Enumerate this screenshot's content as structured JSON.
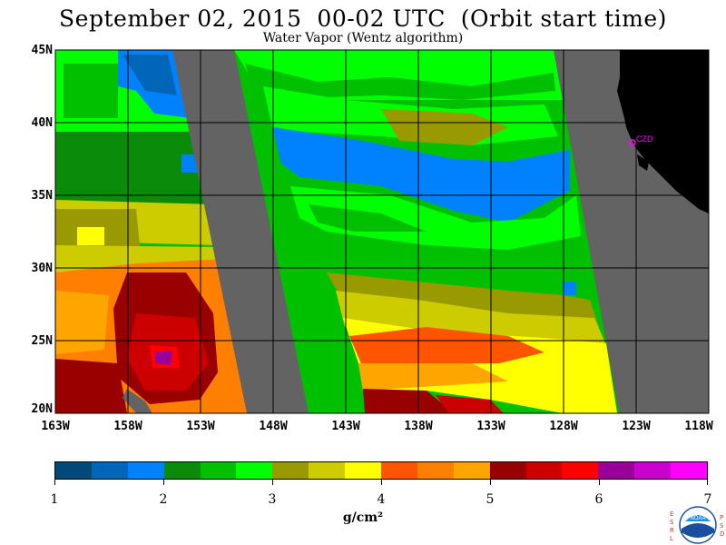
{
  "header": {
    "title": "September 02, 2015  00-02 UTC  (Orbit start time)",
    "subtitle": "Water Vapor (Wentz algorithm)"
  },
  "map": {
    "latitude_labels": [
      "45N",
      "40N",
      "35N",
      "30N",
      "25N",
      "20N"
    ],
    "longitude_labels": [
      "163W",
      "158W",
      "153W",
      "148W",
      "143W",
      "138W",
      "133W",
      "128W",
      "123W",
      "118W"
    ],
    "station_label": "CZD",
    "colors": {
      "no_data": "#636363",
      "land": "#000000",
      "station": "#ff00ff",
      "grid": "#000000"
    }
  },
  "colorbar": {
    "colors": [
      "#004a7a",
      "#0066b8",
      "#0082ff",
      "#0a8c0a",
      "#00c000",
      "#00ff00",
      "#999900",
      "#cccc00",
      "#ffff00",
      "#ff5500",
      "#ff7f00",
      "#ffa500",
      "#990000",
      "#cc0000",
      "#ff0000",
      "#9a0099",
      "#cc00cc",
      "#ff00ff"
    ],
    "tick_labels": [
      "1",
      "2",
      "3",
      "4",
      "5",
      "6",
      "7"
    ],
    "unit": "g/cm²"
  },
  "logo": {
    "name": "noaa-logo",
    "left_letters": [
      "E",
      "S",
      "R",
      "L"
    ],
    "right_letters": [
      "P",
      "S",
      "D"
    ],
    "center_text": "NOAA"
  }
}
